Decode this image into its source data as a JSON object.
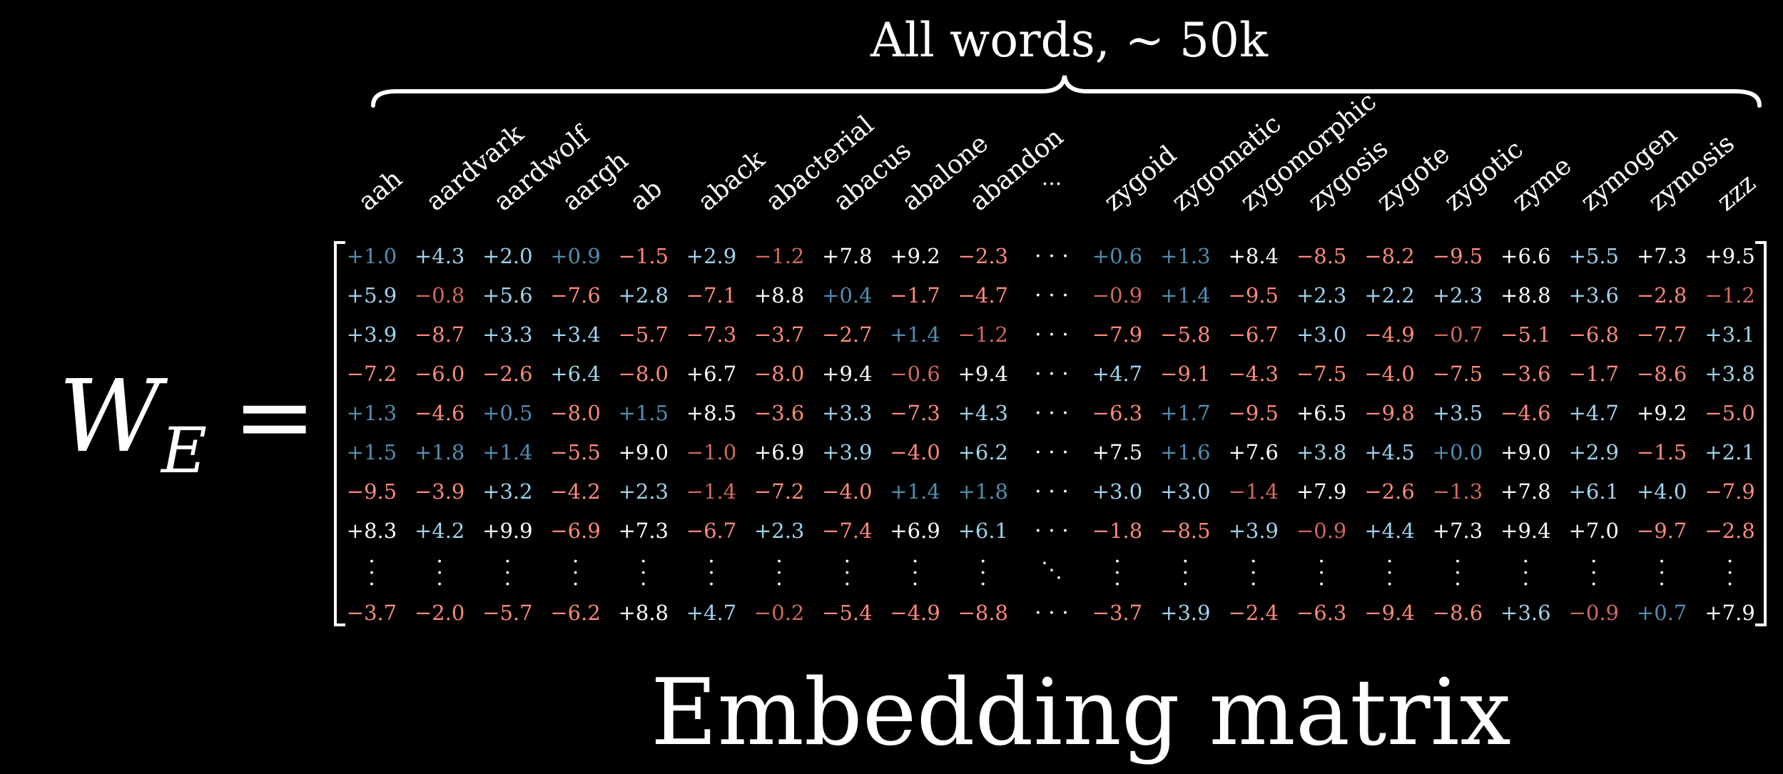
{
  "top_label": "All words,  ∼ 50k",
  "lhs": {
    "symbol": "W",
    "subscript": "E",
    "equals": "="
  },
  "caption": "Embedding matrix",
  "colors": {
    "positive_strong": "#ffffff",
    "positive_mid": "#9fd4ee",
    "positive_weak": "#4f8fb3",
    "negative": "#ff8a7a",
    "negative_weak": "#d2695e"
  },
  "headers_left": [
    "aah",
    "aardvark",
    "aardwolf",
    "aargh",
    "ab",
    "aback",
    "abacterial",
    "abacus",
    "abalone",
    "abandon"
  ],
  "header_ellipsis": "...",
  "headers_right": [
    "zygoid",
    "zygomatic",
    "zygomorphic",
    "zygosis",
    "zygote",
    "zygotic",
    "zyme",
    "zymogen",
    "zymosis",
    "zzz"
  ],
  "row_ellipsis": "· · ·",
  "diag_ellipsis": "⋱",
  "rows": [
    {
      "left": [
        "+1.0",
        "+4.3",
        "+2.0",
        "+0.9",
        "−1.5",
        "+2.9",
        "−1.2",
        "+7.8",
        "+9.2",
        "−2.3"
      ],
      "right": [
        "+0.6",
        "+1.3",
        "+8.4",
        "−8.5",
        "−8.2",
        "−9.5",
        "+6.6",
        "+5.5",
        "+7.3",
        "+9.5"
      ]
    },
    {
      "left": [
        "+5.9",
        "−0.8",
        "+5.6",
        "−7.6",
        "+2.8",
        "−7.1",
        "+8.8",
        "+0.4",
        "−1.7",
        "−4.7"
      ],
      "right": [
        "−0.9",
        "+1.4",
        "−9.5",
        "+2.3",
        "+2.2",
        "+2.3",
        "+8.8",
        "+3.6",
        "−2.8",
        "−1.2"
      ]
    },
    {
      "left": [
        "+3.9",
        "−8.7",
        "+3.3",
        "+3.4",
        "−5.7",
        "−7.3",
        "−3.7",
        "−2.7",
        "+1.4",
        "−1.2"
      ],
      "right": [
        "−7.9",
        "−5.8",
        "−6.7",
        "+3.0",
        "−4.9",
        "−0.7",
        "−5.1",
        "−6.8",
        "−7.7",
        "+3.1"
      ]
    },
    {
      "left": [
        "−7.2",
        "−6.0",
        "−2.6",
        "+6.4",
        "−8.0",
        "+6.7",
        "−8.0",
        "+9.4",
        "−0.6",
        "+9.4"
      ],
      "right": [
        "+4.7",
        "−9.1",
        "−4.3",
        "−7.5",
        "−4.0",
        "−7.5",
        "−3.6",
        "−1.7",
        "−8.6",
        "+3.8"
      ]
    },
    {
      "left": [
        "+1.3",
        "−4.6",
        "+0.5",
        "−8.0",
        "+1.5",
        "+8.5",
        "−3.6",
        "+3.3",
        "−7.3",
        "+4.3"
      ],
      "right": [
        "−6.3",
        "+1.7",
        "−9.5",
        "+6.5",
        "−9.8",
        "+3.5",
        "−4.6",
        "+4.7",
        "+9.2",
        "−5.0"
      ]
    },
    {
      "left": [
        "+1.5",
        "+1.8",
        "+1.4",
        "−5.5",
        "+9.0",
        "−1.0",
        "+6.9",
        "+3.9",
        "−4.0",
        "+6.2"
      ],
      "right": [
        "+7.5",
        "+1.6",
        "+7.6",
        "+3.8",
        "+4.5",
        "+0.0",
        "+9.0",
        "+2.9",
        "−1.5",
        "+2.1"
      ]
    },
    {
      "left": [
        "−9.5",
        "−3.9",
        "+3.2",
        "−4.2",
        "+2.3",
        "−1.4",
        "−7.2",
        "−4.0",
        "+1.4",
        "+1.8"
      ],
      "right": [
        "+3.0",
        "+3.0",
        "−1.4",
        "+7.9",
        "−2.6",
        "−1.3",
        "+7.8",
        "+6.1",
        "+4.0",
        "−7.9"
      ]
    },
    {
      "left": [
        "+8.3",
        "+4.2",
        "+9.9",
        "−6.9",
        "+7.3",
        "−6.7",
        "+2.3",
        "−7.4",
        "+6.9",
        "+6.1"
      ],
      "right": [
        "−1.8",
        "−8.5",
        "+3.9",
        "−0.9",
        "+4.4",
        "+7.3",
        "+9.4",
        "+7.0",
        "−9.7",
        "−2.8"
      ]
    }
  ],
  "last_row": {
    "left": [
      "−3.7",
      "−2.0",
      "−5.7",
      "−6.2",
      "+8.8",
      "+4.7",
      "−0.2",
      "−5.4",
      "−4.9",
      "−8.8"
    ],
    "right": [
      "−3.7",
      "+3.9",
      "−2.4",
      "−6.3",
      "−9.4",
      "−8.6",
      "+3.6",
      "−0.9",
      "+0.7",
      "+7.9"
    ]
  }
}
